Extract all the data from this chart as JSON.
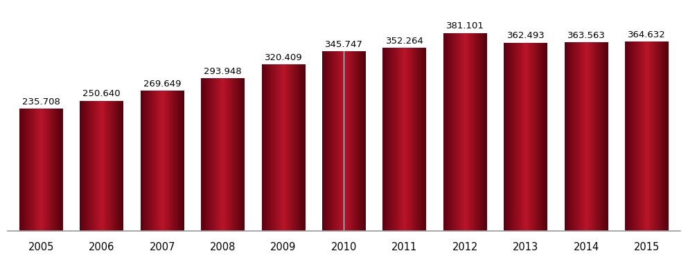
{
  "years": [
    "2005",
    "2006",
    "2007",
    "2008",
    "2009",
    "2010",
    "2011",
    "2012",
    "2013",
    "2014",
    "2015"
  ],
  "values": [
    235708,
    250640,
    269649,
    293948,
    320409,
    345747,
    352264,
    381101,
    362493,
    363563,
    364632
  ],
  "labels": [
    "235.708",
    "250.640",
    "269.649",
    "293.948",
    "320.409",
    "345.747",
    "352.264",
    "381.101",
    "362.493",
    "363.563",
    "364.632"
  ],
  "bar_color_dark": "#6B0010",
  "bar_color_mid": "#C0162A",
  "bar_color_light": "#D0243C",
  "background_color": "#FFFFFF",
  "text_color": "#000000",
  "label_fontsize": 9.5,
  "tick_fontsize": 10.5,
  "ylim": [
    0,
    430000
  ],
  "bar_width": 0.72,
  "fig_width": 9.93,
  "fig_height": 3.76,
  "dpi": 100
}
